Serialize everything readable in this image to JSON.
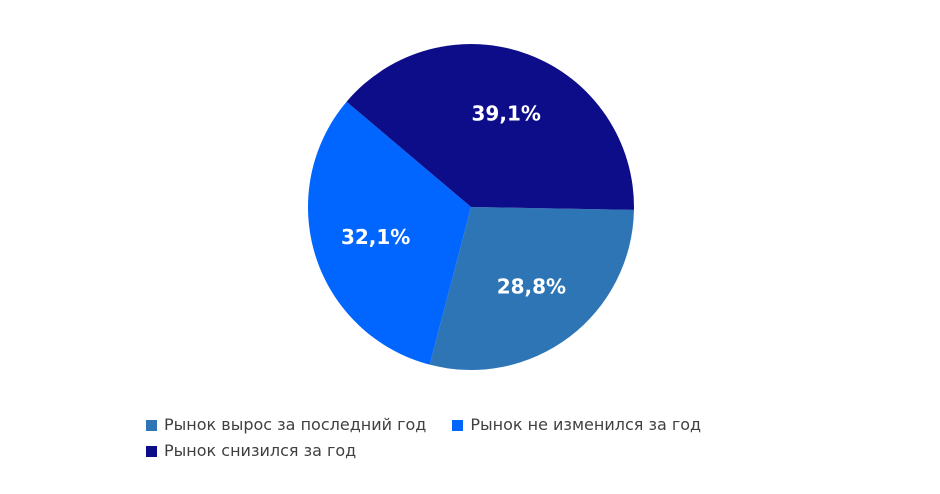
{
  "chart_data": {
    "type": "pie",
    "title": "",
    "categories": [
      "Рынок вырос за последний год",
      "Рынок не изменился за год",
      "Рынок снизился за год"
    ],
    "values": [
      28.8,
      32.1,
      39.1
    ],
    "labels": [
      "28,8%",
      "32,1%",
      "39,1%"
    ],
    "colors": [
      "#2E75B6",
      "#0066FF",
      "#0D0D8A"
    ],
    "start_angle_deg": 91,
    "direction": "clockwise",
    "legend": "bottom"
  }
}
